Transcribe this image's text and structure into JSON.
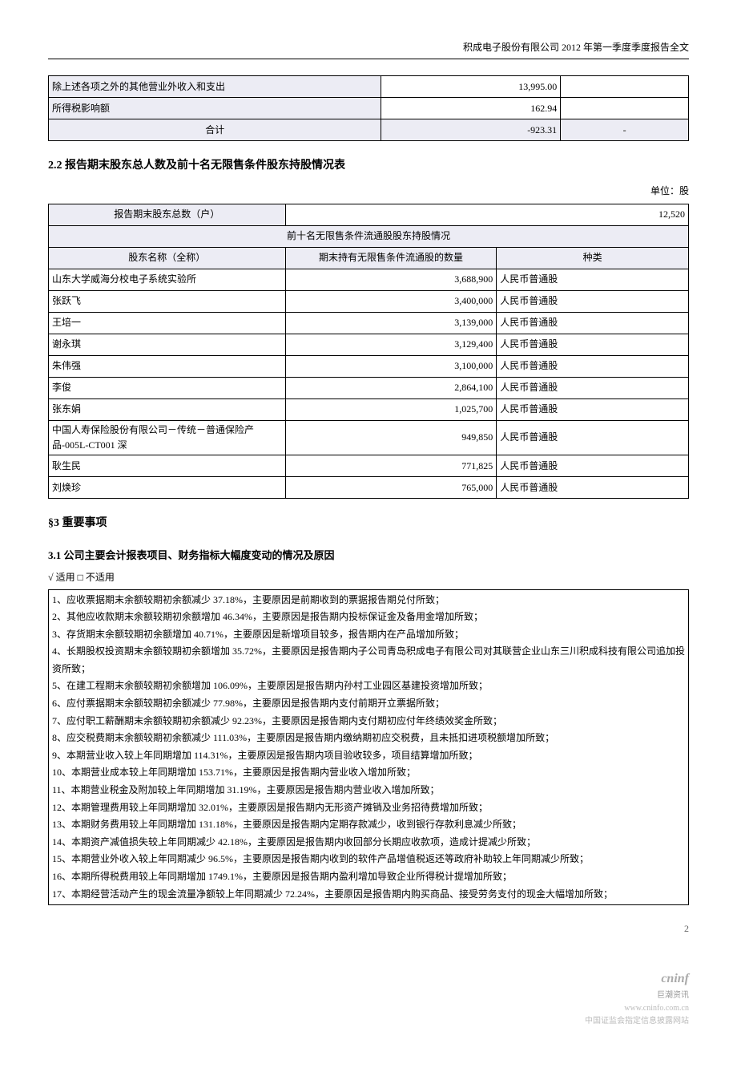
{
  "header": "积成电子股份有限公司 2012 年第一季度季度报告全文",
  "table1": {
    "rows": [
      {
        "label": "除上述各项之外的其他营业外收入和支出",
        "v1": "13,995.00",
        "v2": ""
      },
      {
        "label": "所得税影响额",
        "v1": "162.94",
        "v2": ""
      }
    ],
    "total": {
      "label": "合计",
      "v1": "-923.31",
      "v2": "-"
    }
  },
  "section22": {
    "title": "2.2 报告期末股东总人数及前十名无限售条件股东持股情况表",
    "unit": "单位：股",
    "row1_label": "报告期末股东总数（户）",
    "row1_value": "12,520",
    "subhead": "前十名无限售条件流通股股东持股情况",
    "col1": "股东名称（全称）",
    "col2": "期末持有无限售条件流通股的数量",
    "col3": "种类",
    "rows": [
      {
        "name": "山东大学威海分校电子系统实验所",
        "qty": "3,688,900",
        "type": "人民币普通股"
      },
      {
        "name": "张跃飞",
        "qty": "3,400,000",
        "type": "人民币普通股"
      },
      {
        "name": "王培一",
        "qty": "3,139,000",
        "type": "人民币普通股"
      },
      {
        "name": "谢永琪",
        "qty": "3,129,400",
        "type": "人民币普通股"
      },
      {
        "name": "朱伟强",
        "qty": "3,100,000",
        "type": "人民币普通股"
      },
      {
        "name": "李俊",
        "qty": "2,864,100",
        "type": "人民币普通股"
      },
      {
        "name": "张东娟",
        "qty": "1,025,700",
        "type": "人民币普通股"
      },
      {
        "name": "中国人寿保险股份有限公司－传统－普通保险产品-005L-CT001 深",
        "qty": "949,850",
        "type": "人民币普通股"
      },
      {
        "name": "耿生民",
        "qty": "771,825",
        "type": "人民币普通股"
      },
      {
        "name": "刘焕珍",
        "qty": "765,000",
        "type": "人民币普通股"
      }
    ]
  },
  "section3": {
    "title": "§3  重要事项",
    "sub31": "3.1 公司主要会计报表项目、财务指标大幅度变动的情况及原因",
    "checkline": "√ 适用 □ 不适用",
    "items": [
      "1、应收票据期末余额较期初余额减少 37.18%，主要原因是前期收到的票据报告期兑付所致；",
      "2、其他应收款期末余额较期初余额增加 46.34%，主要原因是报告期内投标保证金及备用金增加所致；",
      "3、存货期末余额较期初余额增加 40.71%，主要原因是新增项目较多，报告期内在产品增加所致；",
      "4、长期股权投资期末余额较期初余额增加 35.72%，主要原因是报告期内子公司青岛积成电子有限公司对其联营企业山东三川积成科技有限公司追加投资所致；",
      "5、在建工程期末余额较期初余额增加 106.09%，主要原因是报告期内孙村工业园区基建投资增加所致；",
      "6、应付票据期末余额较期初余额减少 77.98%，主要原因是报告期内支付前期开立票据所致；",
      "7、应付职工薪酬期末余额较期初余额减少 92.23%，主要原因是报告期内支付期初应付年终绩效奖金所致；",
      "8、应交税费期末余额较期初余额减少 111.03%，主要原因是报告期内缴纳期初应交税费，且未抵扣进项税额增加所致；",
      "9、本期营业收入较上年同期增加 114.31%，主要原因是报告期内项目验收较多，项目结算增加所致；",
      "10、本期营业成本较上年同期增加 153.71%，主要原因是报告期内营业收入增加所致；",
      "11、本期营业税金及附加较上年同期增加 31.19%，主要原因是报告期内营业收入增加所致；",
      "12、本期管理费用较上年同期增加 32.01%，主要原因是报告期内无形资产摊销及业务招待费增加所致；",
      "13、本期财务费用较上年同期增加 131.18%，主要原因是报告期内定期存款减少，收到银行存款利息减少所致；",
      "14、本期资产减值损失较上年同期减少 42.18%，主要原因是报告期内收回部分长期应收款项，造成计提减少所致；",
      "15、本期营业外收入较上年同期减少 96.5%，主要原因是报告期内收到的软件产品增值税返还等政府补助较上年同期减少所致；",
      "16、本期所得税费用较上年同期增加 1749.1%，主要原因是报告期内盈利增加导致企业所得税计提增加所致；",
      "17、本期经营活动产生的现金流量净额较上年同期减少 72.24%，主要原因是报告期内购买商品、接受劳务支付的现金大幅增加所致；"
    ]
  },
  "page_number": "2",
  "footer_logo": "cninf",
  "footer_brand": "巨潮资讯",
  "footer_url": "www.cninfo.com.cn",
  "footer_desc": "中国证监会指定信息披露网站"
}
